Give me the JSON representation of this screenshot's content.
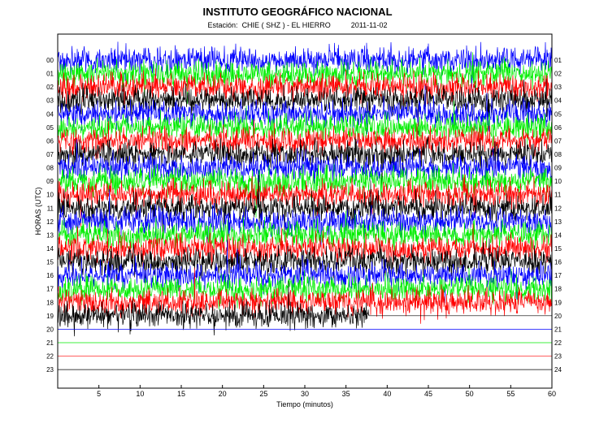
{
  "chart_data": {
    "type": "line",
    "title": "INSTITUTO GEOGRÁFICO NACIONAL",
    "station_label": "Estación:",
    "station": "CHIE ( SHZ ) - EL HIERRO",
    "date": "2011-11-02",
    "xlabel": "Tiempo (minutos)",
    "ylabel": "HORAS (UTC)",
    "xlim": [
      0,
      60
    ],
    "x_ticks": [
      "5",
      "10",
      "15",
      "20",
      "25",
      "30",
      "35",
      "40",
      "45",
      "50",
      "55",
      "60"
    ],
    "left_hour_labels": [
      "00",
      "01",
      "02",
      "03",
      "04",
      "05",
      "06",
      "07",
      "08",
      "09",
      "10",
      "11",
      "12",
      "13",
      "14",
      "15",
      "16",
      "17",
      "18",
      "19",
      "20",
      "21",
      "22",
      "23"
    ],
    "right_hour_labels": [
      "01",
      "02",
      "03",
      "04",
      "05",
      "06",
      "07",
      "08",
      "09",
      "10",
      "11",
      "12",
      "13",
      "14",
      "15",
      "16",
      "17",
      "18",
      "19",
      "20",
      "21",
      "22",
      "23",
      "24"
    ],
    "trace_colors": [
      "#0000ff",
      "#00ee00",
      "#ff0000",
      "#000000"
    ],
    "recording_end_minute": 37.8,
    "grid": false
  }
}
